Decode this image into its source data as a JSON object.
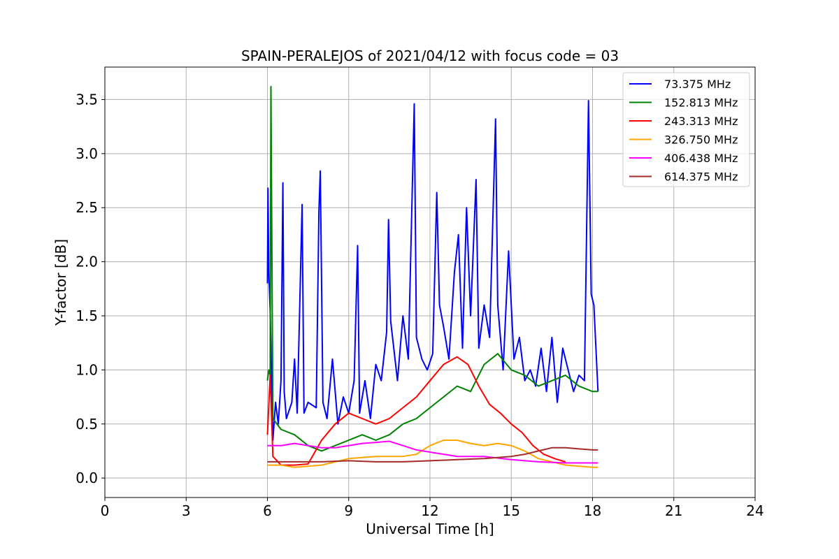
{
  "chart_data": {
    "type": "line",
    "title": "SPAIN-PERALEJOS of 2021/04/12 with focus code = 03",
    "xlabel": "Universal Time [h]",
    "ylabel": "Y-factor [dB]",
    "xlim": [
      0,
      24
    ],
    "ylim": [
      -0.18,
      3.8
    ],
    "xticks": [
      0,
      3,
      6,
      9,
      12,
      15,
      18,
      21,
      24
    ],
    "xtick_labels": [
      "0",
      "3",
      "6",
      "9",
      "12",
      "15",
      "18",
      "21",
      "24"
    ],
    "yticks": [
      0.0,
      0.5,
      1.0,
      1.5,
      2.0,
      2.5,
      3.0,
      3.5
    ],
    "ytick_labels": [
      "0.0",
      "0.5",
      "1.0",
      "1.5",
      "2.0",
      "2.5",
      "3.0",
      "3.5"
    ],
    "grid": true,
    "legend_position": "top-right",
    "series": [
      {
        "name": " 73.375 MHz",
        "color": "#0000ff",
        "x": [
          6.0,
          6.02,
          6.05,
          6.1,
          6.2,
          6.3,
          6.4,
          6.5,
          6.57,
          6.62,
          6.7,
          6.9,
          7.0,
          7.1,
          7.28,
          7.35,
          7.5,
          7.8,
          7.9,
          7.95,
          8.05,
          8.2,
          8.4,
          8.6,
          8.8,
          9.0,
          9.2,
          9.33,
          9.4,
          9.6,
          9.8,
          10.0,
          10.2,
          10.4,
          10.47,
          10.55,
          10.8,
          11.0,
          11.2,
          11.42,
          11.5,
          11.7,
          11.9,
          12.1,
          12.25,
          12.35,
          12.5,
          12.7,
          12.9,
          13.05,
          13.2,
          13.35,
          13.5,
          13.7,
          13.8,
          14.0,
          14.2,
          14.42,
          14.5,
          14.7,
          14.9,
          15.1,
          15.3,
          15.5,
          15.7,
          15.9,
          16.1,
          16.3,
          16.5,
          16.7,
          16.9,
          17.1,
          17.3,
          17.5,
          17.7,
          17.85,
          17.95,
          18.05,
          18.2
        ],
        "y": [
          1.8,
          2.68,
          1.9,
          1.55,
          0.35,
          0.7,
          0.5,
          0.9,
          2.73,
          0.8,
          0.55,
          0.7,
          1.1,
          0.6,
          2.53,
          0.6,
          0.7,
          0.65,
          2.46,
          2.84,
          0.7,
          0.55,
          1.1,
          0.5,
          0.75,
          0.6,
          0.9,
          2.15,
          0.6,
          0.9,
          0.55,
          1.05,
          0.9,
          1.35,
          2.39,
          1.45,
          0.9,
          1.5,
          1.1,
          3.46,
          1.3,
          1.1,
          1.0,
          1.15,
          2.64,
          1.6,
          1.4,
          1.1,
          1.9,
          2.25,
          1.2,
          2.5,
          1.5,
          2.76,
          1.2,
          1.6,
          1.3,
          3.32,
          1.6,
          1.0,
          2.1,
          1.1,
          1.3,
          0.9,
          1.0,
          0.85,
          1.2,
          0.8,
          1.3,
          0.7,
          1.2,
          1.0,
          0.8,
          0.95,
          0.9,
          3.49,
          1.7,
          1.6,
          0.8
        ]
      },
      {
        "name": "152.813 MHz",
        "color": "#008000",
        "x": [
          6.0,
          6.05,
          6.1,
          6.13,
          6.2,
          6.5,
          7.0,
          7.5,
          8.0,
          8.5,
          9.0,
          9.5,
          10.0,
          10.5,
          11.0,
          11.5,
          12.0,
          12.5,
          13.0,
          13.5,
          14.0,
          14.5,
          15.0,
          15.5,
          16.0,
          16.5,
          17.0,
          17.5,
          18.0,
          18.2
        ],
        "y": [
          0.9,
          1.0,
          0.95,
          3.62,
          0.55,
          0.45,
          0.4,
          0.3,
          0.25,
          0.3,
          0.35,
          0.4,
          0.35,
          0.4,
          0.5,
          0.55,
          0.65,
          0.75,
          0.85,
          0.8,
          1.05,
          1.15,
          1.0,
          0.95,
          0.85,
          0.9,
          0.95,
          0.85,
          0.8,
          0.8
        ]
      },
      {
        "name": "243.313 MHz",
        "color": "#ff0000",
        "x": [
          6.0,
          6.1,
          6.2,
          6.5,
          7.0,
          7.5,
          8.0,
          8.5,
          9.0,
          9.5,
          10.0,
          10.5,
          11.0,
          11.5,
          12.0,
          12.5,
          13.0,
          13.4,
          13.8,
          14.2,
          14.6,
          15.0,
          15.4,
          15.8,
          16.2,
          16.6,
          17.0
        ],
        "y": [
          0.4,
          0.95,
          0.2,
          0.12,
          0.12,
          0.13,
          0.35,
          0.5,
          0.6,
          0.55,
          0.5,
          0.55,
          0.65,
          0.75,
          0.9,
          1.05,
          1.12,
          1.05,
          0.85,
          0.68,
          0.6,
          0.5,
          0.42,
          0.3,
          0.22,
          0.18,
          0.15
        ]
      },
      {
        "name": "326.750 MHz",
        "color": "#ffa500",
        "x": [
          6.0,
          6.5,
          7.0,
          8.0,
          9.0,
          10.0,
          11.0,
          11.5,
          12.0,
          12.5,
          13.0,
          13.5,
          14.0,
          14.5,
          15.0,
          15.5,
          16.0,
          17.0,
          18.0,
          18.2
        ],
        "y": [
          0.12,
          0.12,
          0.1,
          0.12,
          0.18,
          0.2,
          0.2,
          0.22,
          0.3,
          0.35,
          0.35,
          0.32,
          0.3,
          0.32,
          0.3,
          0.25,
          0.18,
          0.12,
          0.1,
          0.1
        ]
      },
      {
        "name": "406.438 MHz",
        "color": "#ff00ff",
        "x": [
          6.0,
          6.5,
          7.0,
          7.5,
          8.0,
          8.5,
          9.0,
          9.5,
          10.0,
          10.5,
          11.0,
          11.5,
          12.0,
          12.5,
          13.0,
          14.0,
          15.0,
          16.0,
          17.0,
          18.0,
          18.2
        ],
        "y": [
          0.3,
          0.3,
          0.32,
          0.3,
          0.28,
          0.28,
          0.3,
          0.32,
          0.33,
          0.34,
          0.3,
          0.26,
          0.24,
          0.22,
          0.2,
          0.2,
          0.17,
          0.15,
          0.14,
          0.14,
          0.14
        ]
      },
      {
        "name": "614.375 MHz",
        "color": "#a52a2a",
        "x": [
          6.0,
          6.5,
          7.0,
          8.0,
          9.0,
          10.0,
          11.0,
          12.0,
          13.0,
          14.0,
          15.0,
          15.5,
          16.0,
          16.5,
          17.0,
          17.5,
          18.0,
          18.2
        ],
        "y": [
          0.15,
          0.15,
          0.15,
          0.15,
          0.16,
          0.15,
          0.15,
          0.16,
          0.17,
          0.18,
          0.2,
          0.22,
          0.25,
          0.28,
          0.28,
          0.27,
          0.26,
          0.26
        ]
      }
    ]
  }
}
